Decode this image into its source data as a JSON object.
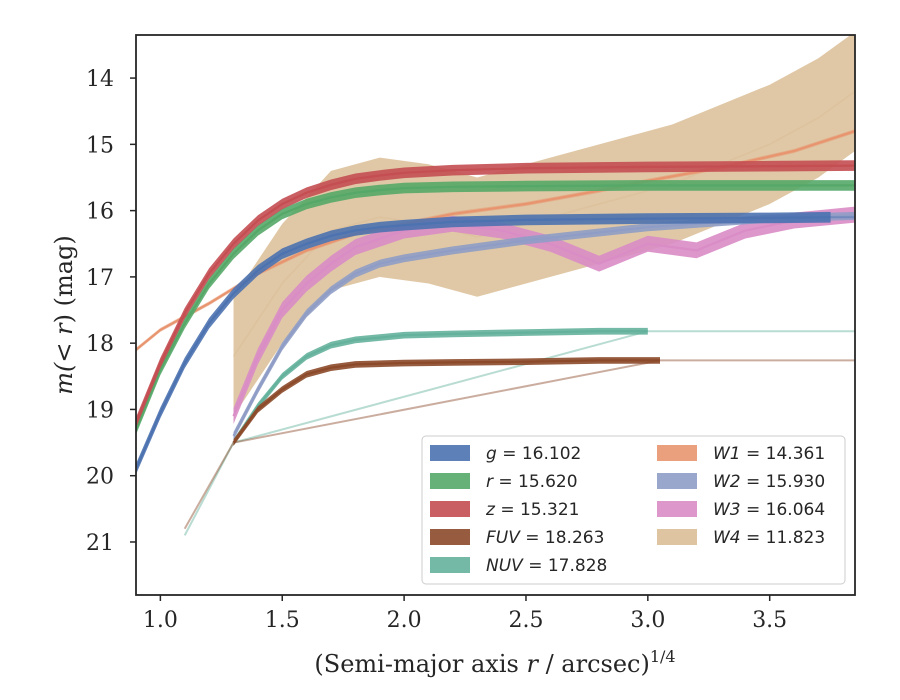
{
  "chart_data": {
    "type": "line",
    "title": "",
    "xlabel_main": "(Semi-major axis ",
    "xlabel_var": "r",
    "xlabel_rest": " / arcsec)",
    "xlabel_exp": "1/4",
    "ylabel_pre": "m(",
    "ylabel_mid": "< ",
    "ylabel_var": "r",
    "ylabel_post": ") (mag)",
    "xlim": [
      0.9,
      3.85
    ],
    "ylim": [
      21.8,
      13.35
    ],
    "y_inverted": true,
    "x_ticks": [
      1.0,
      1.5,
      2.0,
      2.5,
      3.0,
      3.5
    ],
    "x_tick_labels": [
      "1.0",
      "1.5",
      "2.0",
      "2.5",
      "3.0",
      "3.5"
    ],
    "y_ticks": [
      14,
      15,
      16,
      17,
      18,
      19,
      20,
      21
    ],
    "y_tick_labels": [
      "14",
      "15",
      "16",
      "17",
      "18",
      "19",
      "20",
      "21"
    ],
    "legend_position": "lower right",
    "legend_columns": 2,
    "grid": false,
    "series": [
      {
        "name": "g",
        "label": "g = 16.102",
        "color": "#4c72b0",
        "x": [
          0.9,
          1.0,
          1.1,
          1.2,
          1.3,
          1.4,
          1.5,
          1.6,
          1.7,
          1.8,
          1.9,
          2.0,
          2.2,
          2.5,
          3.0,
          3.5,
          3.75
        ],
        "y": [
          19.9,
          19.05,
          18.3,
          17.7,
          17.25,
          16.9,
          16.65,
          16.5,
          16.38,
          16.3,
          16.25,
          16.22,
          16.17,
          16.14,
          16.12,
          16.11,
          16.1
        ],
        "width": 0.08,
        "ext_x": [
          3.75,
          3.85
        ],
        "ext_y": [
          16.1,
          16.1
        ]
      },
      {
        "name": "r",
        "label": "r = 15.620",
        "color": "#55a868",
        "x": [
          0.9,
          1.0,
          1.1,
          1.2,
          1.3,
          1.4,
          1.5,
          1.6,
          1.7,
          1.8,
          1.9,
          2.0,
          2.2,
          2.5,
          3.0,
          3.5,
          3.85
        ],
        "y": [
          19.3,
          18.4,
          17.7,
          17.1,
          16.65,
          16.3,
          16.05,
          15.9,
          15.8,
          15.73,
          15.69,
          15.66,
          15.64,
          15.63,
          15.62,
          15.62,
          15.62
        ],
        "width": 0.08
      },
      {
        "name": "z",
        "label": "z = 15.321",
        "color": "#c44e52",
        "x": [
          0.9,
          1.0,
          1.1,
          1.2,
          1.3,
          1.4,
          1.5,
          1.6,
          1.7,
          1.8,
          1.9,
          2.0,
          2.2,
          2.5,
          3.0,
          3.5,
          3.85
        ],
        "y": [
          19.2,
          18.3,
          17.55,
          16.95,
          16.5,
          16.15,
          15.9,
          15.73,
          15.61,
          15.52,
          15.47,
          15.43,
          15.39,
          15.36,
          15.34,
          15.33,
          15.32
        ],
        "width": 0.08
      },
      {
        "name": "FUV",
        "label": "FUV = 18.263",
        "color": "#8c4a2a",
        "x": [
          1.3,
          1.4,
          1.5,
          1.6,
          1.7,
          1.8,
          2.0,
          2.2,
          2.5,
          2.8,
          3.05
        ],
        "y": [
          19.5,
          19.0,
          18.7,
          18.47,
          18.37,
          18.32,
          18.3,
          18.29,
          18.28,
          18.26,
          18.26
        ],
        "width": 0.05,
        "ext_x": [
          1.1,
          1.3,
          3.05,
          3.85
        ],
        "ext_y": [
          20.8,
          19.5,
          18.26,
          18.26
        ]
      },
      {
        "name": "NUV",
        "label": "NUV = 17.828",
        "color": "#64b19c",
        "x": [
          1.3,
          1.4,
          1.5,
          1.6,
          1.7,
          1.8,
          2.0,
          2.2,
          2.5,
          2.8,
          3.0
        ],
        "y": [
          19.5,
          18.95,
          18.5,
          18.2,
          18.03,
          17.95,
          17.88,
          17.86,
          17.84,
          17.82,
          17.82
        ],
        "width": 0.05,
        "ext_x": [
          1.1,
          1.3,
          3.0,
          3.85
        ],
        "ext_y": [
          20.9,
          19.5,
          17.82,
          17.82
        ]
      },
      {
        "name": "W1",
        "label": "W1 = 14.361",
        "color": "#e8956f",
        "x": [
          0.9,
          1.0,
          1.2,
          1.4,
          1.6,
          1.8,
          2.0,
          2.2,
          2.5,
          2.8,
          3.0,
          3.3,
          3.6,
          3.85
        ],
        "y": [
          18.1,
          17.8,
          17.4,
          16.95,
          16.6,
          16.35,
          16.2,
          16.05,
          15.9,
          15.7,
          15.55,
          15.35,
          15.1,
          14.8
        ],
        "width": 0.03
      },
      {
        "name": "W2",
        "label": "W2 = 15.930",
        "color": "#8f9dc6",
        "x": [
          1.3,
          1.4,
          1.5,
          1.6,
          1.7,
          1.8,
          1.9,
          2.0,
          2.2,
          2.5,
          3.0,
          3.5,
          3.85
        ],
        "y": [
          19.4,
          18.7,
          18.05,
          17.55,
          17.2,
          16.95,
          16.8,
          16.72,
          16.6,
          16.45,
          16.25,
          16.12,
          16.08
        ],
        "width": 0.06
      },
      {
        "name": "W3",
        "label": "W3 = 16.064",
        "color": "#d98cc5",
        "x": [
          1.3,
          1.4,
          1.5,
          1.6,
          1.7,
          1.8,
          2.0,
          2.2,
          2.4,
          2.6,
          2.8,
          3.0,
          3.2,
          3.4,
          3.6,
          3.85
        ],
        "y": [
          19.1,
          18.2,
          17.5,
          17.1,
          16.8,
          16.55,
          16.3,
          16.2,
          16.3,
          16.5,
          16.8,
          16.5,
          16.6,
          16.3,
          16.15,
          16.06
        ],
        "width": 0.12
      },
      {
        "name": "W4",
        "label": "W4 = 11.823",
        "color": "#dbbe97",
        "x": [
          1.3,
          1.5,
          1.7,
          1.9,
          2.1,
          2.3,
          2.5,
          2.7,
          2.9,
          3.1,
          3.3,
          3.5,
          3.7,
          3.85
        ],
        "y": [
          18.2,
          17.1,
          16.3,
          16.1,
          16.2,
          16.4,
          16.2,
          16.0,
          15.8,
          15.6,
          15.3,
          15.0,
          14.6,
          14.2
        ],
        "width": 0.9
      }
    ]
  }
}
